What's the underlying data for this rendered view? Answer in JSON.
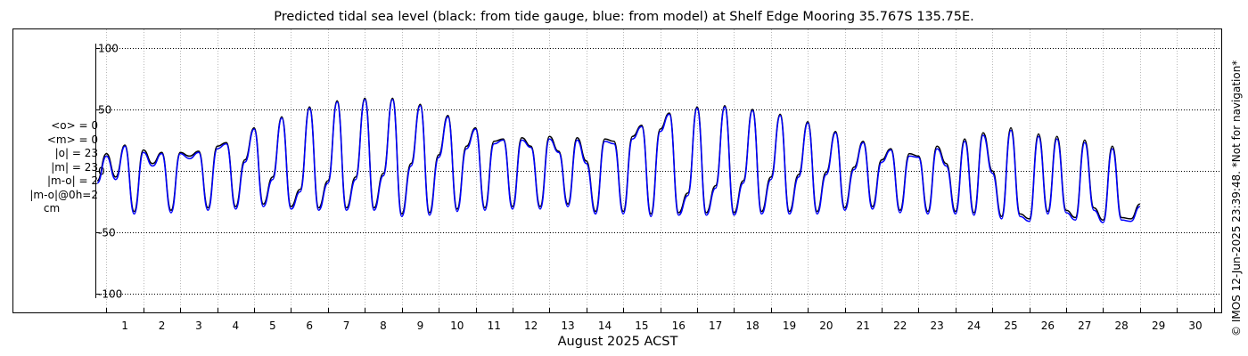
{
  "chart_data": {
    "type": "line",
    "title": "Predicted tidal sea level (black: from tide gauge, blue: from model) at Shelf Edge Mooring 35.767S 135.75E.",
    "xlabel": "August 2025 ACST",
    "ylabel": "",
    "unit": "cm",
    "xlim": [
      0.7,
      31.2
    ],
    "ylim": [
      -115,
      115
    ],
    "x_ticks": [
      1,
      2,
      3,
      4,
      5,
      6,
      7,
      8,
      9,
      10,
      11,
      12,
      13,
      14,
      15,
      16,
      17,
      18,
      19,
      20,
      21,
      22,
      23,
      24,
      25,
      26,
      27,
      28,
      29,
      30
    ],
    "x_tick_labels": [
      "1",
      "2",
      "3",
      "4",
      "5",
      "6",
      "7",
      "8",
      "9",
      "10",
      "11",
      "12",
      "13",
      "14",
      "15",
      "16",
      "17",
      "18",
      "19",
      "20",
      "21",
      "22",
      "23",
      "24",
      "25",
      "26",
      "27",
      "28",
      "29",
      "30"
    ],
    "y_ticks": [
      -100,
      -50,
      0,
      50,
      100
    ],
    "y_tick_labels": [
      "-100",
      "-50",
      "0",
      "50",
      "100"
    ],
    "grid": true,
    "stats": {
      "mean_obs": "<o> = 0",
      "mean_model": "<m> = 0",
      "abs_obs": "|o| = 23",
      "abs_model": "|m| = 23",
      "abs_diff": "|m-o| = 2",
      "diff_at_0h": "|m-o|@0h=2",
      "unit": "cm"
    },
    "credit": "© IMOS 12-Jun-2025 23:39:48. *Not for navigation*",
    "series": [
      {
        "name": "from tide gauge",
        "color": "#000000",
        "step_days": 0.25,
        "x_start": 0.75,
        "values": [
          -8,
          14,
          -5,
          21,
          -33,
          17,
          6,
          15,
          -32,
          15,
          12,
          16,
          -30,
          20,
          23,
          -29,
          9,
          35,
          -27,
          -5,
          44,
          -29,
          -15,
          52,
          -30,
          -8,
          57,
          -30,
          -5,
          59,
          -30,
          -2,
          59,
          -35,
          6,
          54,
          -34,
          13,
          45,
          -31,
          20,
          35,
          -30,
          24,
          26,
          -29,
          27,
          20,
          -29,
          28,
          16,
          -27,
          27,
          8,
          -33,
          26,
          24,
          -33,
          28,
          37,
          -35,
          34,
          47,
          -34,
          -18,
          52,
          -34,
          -12,
          53,
          -34,
          -8,
          50,
          -33,
          -5,
          46,
          -33,
          -3,
          40,
          -33,
          -1,
          32,
          -30,
          3,
          24,
          -29,
          9,
          18,
          -32,
          14,
          12,
          -33,
          20,
          6,
          -33,
          26,
          -34,
          31,
          0,
          -37,
          35,
          -35,
          -39,
          30,
          -33,
          28,
          -32,
          -38,
          25,
          -30,
          -40,
          20,
          -38,
          -39,
          -27
        ]
      },
      {
        "name": "from model",
        "color": "#0000ff",
        "step_days": 0.25,
        "x_start": 0.75,
        "values": [
          -10,
          12,
          -7,
          20,
          -35,
          15,
          4,
          14,
          -34,
          14,
          10,
          15,
          -32,
          18,
          22,
          -31,
          7,
          34,
          -29,
          -7,
          43,
          -31,
          -17,
          51,
          -32,
          -10,
          56,
          -32,
          -7,
          58,
          -32,
          -4,
          58,
          -37,
          4,
          53,
          -36,
          11,
          44,
          -33,
          18,
          34,
          -32,
          22,
          25,
          -31,
          25,
          19,
          -31,
          26,
          15,
          -29,
          25,
          6,
          -35,
          24,
          22,
          -35,
          26,
          36,
          -37,
          32,
          46,
          -36,
          -20,
          51,
          -36,
          -14,
          52,
          -36,
          -10,
          49,
          -35,
          -7,
          45,
          -35,
          -5,
          39,
          -35,
          -3,
          31,
          -32,
          1,
          23,
          -31,
          7,
          17,
          -34,
          12,
          11,
          -35,
          18,
          4,
          -35,
          24,
          -36,
          29,
          -2,
          -39,
          33,
          -37,
          -41,
          28,
          -35,
          26,
          -34,
          -40,
          23,
          -32,
          -42,
          18,
          -40,
          -41,
          -29
        ]
      }
    ]
  }
}
